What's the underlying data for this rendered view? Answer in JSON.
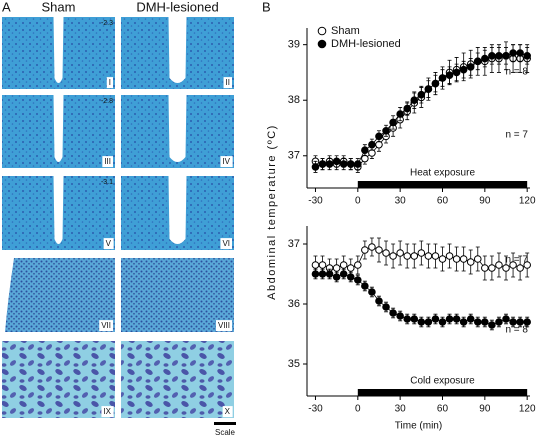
{
  "panel_a": {
    "label": "A",
    "columns": [
      "Sham",
      "DMH-lesioned"
    ],
    "bregma": [
      "-2.3",
      "-2.8",
      "-3.1"
    ],
    "image_labels": [
      "I",
      "II",
      "III",
      "IV",
      "V",
      "VI",
      "VII",
      "VIII",
      "IX",
      "X"
    ],
    "scale_label": "Scale"
  },
  "panel_b": {
    "label": "B",
    "ylabel": "Abdominal temperature (ºC)"
  },
  "chart_data": [
    {
      "type": "line",
      "legend": "upper left",
      "x": [
        -30,
        -25,
        -20,
        -15,
        -10,
        -5,
        0,
        5,
        10,
        15,
        20,
        25,
        30,
        35,
        40,
        45,
        50,
        55,
        60,
        65,
        70,
        75,
        80,
        85,
        90,
        95,
        100,
        105,
        110,
        115,
        120
      ],
      "series": [
        {
          "name": "Sham",
          "color": "#ffffff",
          "values": [
            36.9,
            36.85,
            36.9,
            36.85,
            36.9,
            36.85,
            36.8,
            36.95,
            37.05,
            37.2,
            37.35,
            37.5,
            37.65,
            37.8,
            37.95,
            38.05,
            38.2,
            38.3,
            38.4,
            38.5,
            38.55,
            38.6,
            38.65,
            38.7,
            38.7,
            38.75,
            38.75,
            38.8,
            38.75,
            38.75,
            38.75
          ],
          "errors": [
            0.1,
            0.1,
            0.1,
            0.1,
            0.1,
            0.1,
            0.1,
            0.1,
            0.1,
            0.12,
            0.12,
            0.15,
            0.15,
            0.15,
            0.18,
            0.18,
            0.2,
            0.2,
            0.2,
            0.22,
            0.22,
            0.25,
            0.25,
            0.25,
            0.25,
            0.25,
            0.25,
            0.25,
            0.25,
            0.25,
            0.25
          ]
        },
        {
          "name": "DMH-lesioned",
          "color": "#000000",
          "values": [
            36.8,
            36.85,
            36.85,
            36.9,
            36.85,
            36.85,
            36.85,
            37.1,
            37.2,
            37.35,
            37.45,
            37.6,
            37.75,
            37.85,
            38.0,
            38.1,
            38.2,
            38.3,
            38.4,
            38.45,
            38.5,
            38.55,
            38.6,
            38.7,
            38.75,
            38.8,
            38.8,
            38.8,
            38.85,
            38.85,
            38.8
          ],
          "errors": [
            0.1,
            0.1,
            0.1,
            0.1,
            0.1,
            0.1,
            0.1,
            0.1,
            0.1,
            0.1,
            0.1,
            0.12,
            0.12,
            0.12,
            0.15,
            0.15,
            0.15,
            0.15,
            0.15,
            0.15,
            0.15,
            0.15,
            0.15,
            0.15,
            0.15,
            0.15,
            0.15,
            0.15,
            0.15,
            0.15,
            0.15
          ]
        }
      ],
      "annotations": [
        "n = 8",
        "n = 7"
      ],
      "exposure": {
        "label": "Heat exposure",
        "range": [
          0,
          120
        ]
      },
      "xlim": [
        -36,
        122
      ],
      "xticks": [
        -30,
        0,
        30,
        60,
        90,
        120
      ],
      "ylim": [
        36.6,
        39.3
      ],
      "yticks": [
        37,
        38,
        39
      ]
    },
    {
      "type": "line",
      "x": [
        -30,
        -25,
        -20,
        -15,
        -10,
        -5,
        0,
        5,
        10,
        15,
        20,
        25,
        30,
        35,
        40,
        45,
        50,
        55,
        60,
        65,
        70,
        75,
        80,
        85,
        90,
        95,
        100,
        105,
        110,
        115,
        120
      ],
      "series": [
        {
          "color": "#ffffff",
          "values": [
            36.65,
            36.65,
            36.6,
            36.6,
            36.65,
            36.6,
            36.65,
            36.9,
            36.95,
            36.9,
            36.85,
            36.8,
            36.85,
            36.8,
            36.8,
            36.85,
            36.8,
            36.8,
            36.75,
            36.8,
            36.75,
            36.75,
            36.7,
            36.75,
            36.6,
            36.6,
            36.65,
            36.6,
            36.65,
            36.6,
            36.65
          ],
          "errors": [
            0.15,
            0.15,
            0.15,
            0.15,
            0.15,
            0.15,
            0.15,
            0.15,
            0.15,
            0.2,
            0.2,
            0.2,
            0.2,
            0.2,
            0.2,
            0.2,
            0.2,
            0.2,
            0.2,
            0.2,
            0.2,
            0.2,
            0.2,
            0.2,
            0.2,
            0.2,
            0.2,
            0.2,
            0.2,
            0.2,
            0.2
          ]
        },
        {
          "color": "#000000",
          "values": [
            36.5,
            36.5,
            36.5,
            36.45,
            36.5,
            36.45,
            36.4,
            36.3,
            36.2,
            36.05,
            35.95,
            35.85,
            35.8,
            35.75,
            35.75,
            35.7,
            35.7,
            35.75,
            35.7,
            35.75,
            35.75,
            35.7,
            35.75,
            35.7,
            35.7,
            35.65,
            35.7,
            35.75,
            35.7,
            35.7,
            35.7
          ],
          "errors": [
            0.08,
            0.08,
            0.08,
            0.08,
            0.08,
            0.08,
            0.08,
            0.08,
            0.08,
            0.08,
            0.08,
            0.08,
            0.08,
            0.08,
            0.08,
            0.08,
            0.08,
            0.08,
            0.08,
            0.08,
            0.08,
            0.08,
            0.08,
            0.08,
            0.08,
            0.08,
            0.08,
            0.08,
            0.08,
            0.08,
            0.08
          ]
        }
      ],
      "annotations": [
        "n = 7",
        "n = 8"
      ],
      "exposure": {
        "label": "Cold exposure",
        "range": [
          0,
          120
        ]
      },
      "xlabel": "Time (min)",
      "xlim": [
        -36,
        122
      ],
      "xticks": [
        -30,
        0,
        30,
        60,
        90,
        120
      ],
      "ylim": [
        34.8,
        37.3
      ],
      "yticks": [
        35,
        36,
        37
      ]
    }
  ]
}
